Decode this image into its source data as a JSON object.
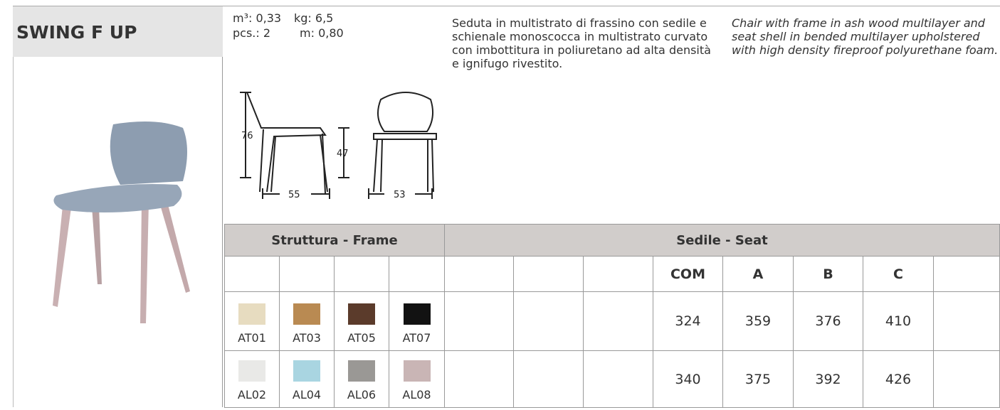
{
  "product": {
    "title": "SWING F UP"
  },
  "specs": [
    "m³: 0,33",
    "kg: 6,5",
    "pcs.: 2",
    "m: 0,80"
  ],
  "dimensions": {
    "height": 76,
    "seat_height": 47,
    "depth": 55,
    "width": 53
  },
  "description": {
    "it": "Seduta in multistrato di frassino con sedile e schienale monoscocca in multistrato curvato con imbottitura in poliuretano ad alta densità e ignifugo rivestito.",
    "en": "Chair with frame in ash wood multilayer and seat shell in bended multilayer upholstered with high density fireproof polyurethane foam."
  },
  "table": {
    "frame_header": "Struttura - Frame",
    "seat_header": "Sedile - Seat",
    "seat_columns": [
      "COM",
      "A",
      "B",
      "C"
    ],
    "rows": [
      {
        "finishes": [
          {
            "code": "AT01",
            "color": "#e7dcc0"
          },
          {
            "code": "AT03",
            "color": "#b98a52"
          },
          {
            "code": "AT05",
            "color": "#5b3b2b"
          },
          {
            "code": "AT07",
            "color": "#121212"
          }
        ],
        "prices": [
          324,
          359,
          376,
          410
        ]
      },
      {
        "finishes": [
          {
            "code": "AL02",
            "color": "#e9e9e7"
          },
          {
            "code": "AL04",
            "color": "#a9d5e1"
          },
          {
            "code": "AL06",
            "color": "#9a9895"
          },
          {
            "code": "AL08",
            "color": "#c9b5b5"
          }
        ],
        "prices": [
          340,
          375,
          392,
          426
        ]
      }
    ]
  }
}
